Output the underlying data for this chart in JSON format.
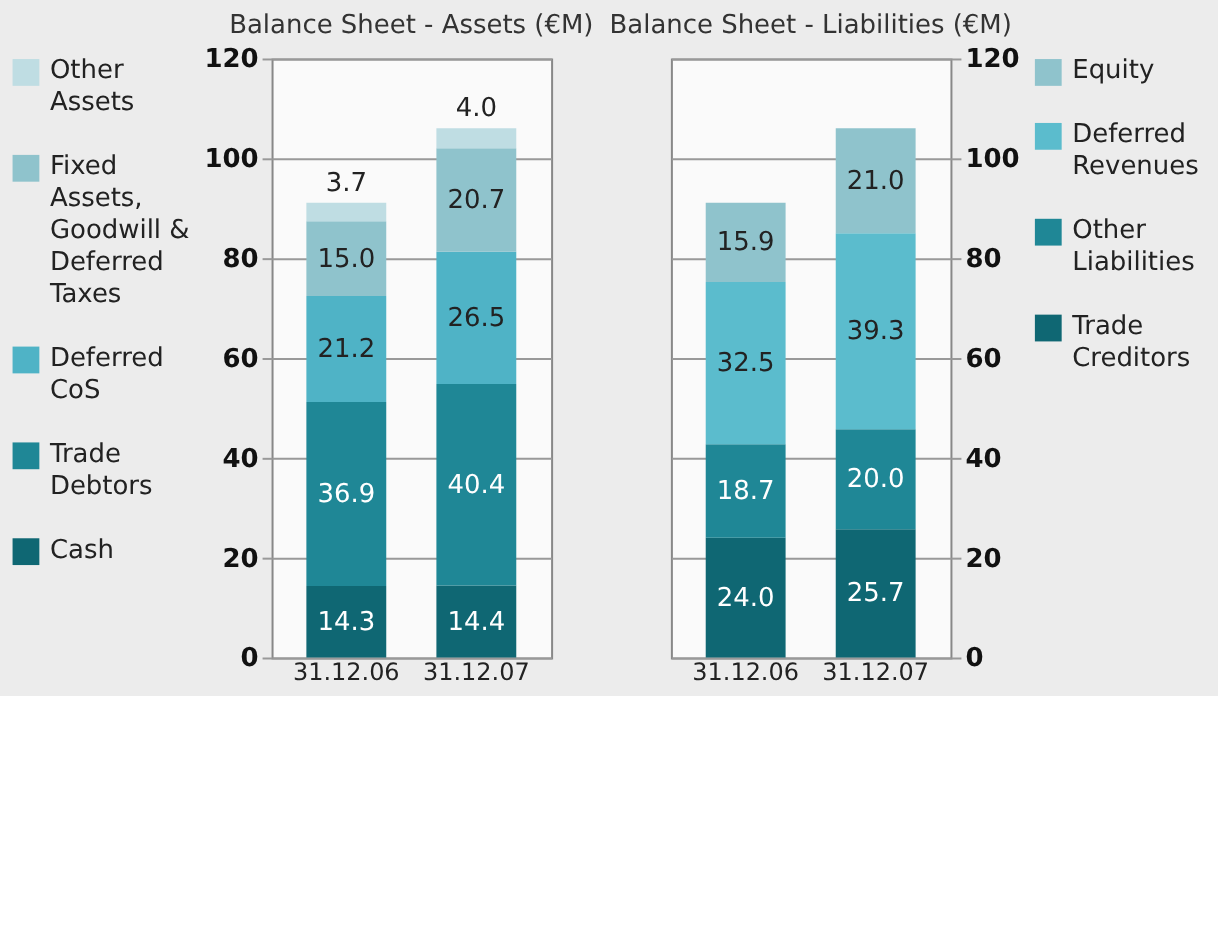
{
  "chart_data": [
    {
      "type": "bar",
      "title": "Balance Sheet - Assets (€M)",
      "categories": [
        "31.12.06",
        "31.12.07"
      ],
      "stacked": true,
      "ylim": [
        0,
        120
      ],
      "yticks": [
        0,
        20,
        40,
        60,
        80,
        100,
        120
      ],
      "grid": "y",
      "legend": "left",
      "series": [
        {
          "name": "Cash",
          "color": "#0f6773",
          "values": [
            14.3,
            14.4
          ],
          "value_labels": [
            "14.3",
            "14.4"
          ]
        },
        {
          "name": "Trade Debtors",
          "color": "#1f8796",
          "values": [
            36.9,
            40.4
          ],
          "value_labels": [
            "36.9",
            "40.4"
          ]
        },
        {
          "name": "Deferred CoS",
          "color": "#4fb3c6",
          "values": [
            21.2,
            26.5
          ],
          "value_labels": [
            "21.2",
            "26.5"
          ]
        },
        {
          "name": "Fixed Assets, Goodwill & Deferred Taxes",
          "color": "#8fc3cc",
          "values": [
            15.0,
            20.7
          ],
          "value_labels": [
            "15.0",
            "20.7"
          ]
        },
        {
          "name": "Other Assets",
          "color": "#bfdde3",
          "values": [
            3.7,
            4.0
          ],
          "value_labels": [
            "3.7",
            "4.0"
          ]
        }
      ]
    },
    {
      "type": "bar",
      "title": "Balance Sheet - Liabilities (€M)",
      "categories": [
        "31.12.06",
        "31.12.07"
      ],
      "stacked": true,
      "ylim": [
        0,
        120
      ],
      "yticks": [
        0,
        20,
        40,
        60,
        80,
        100,
        120
      ],
      "grid": "y",
      "legend": "right",
      "series": [
        {
          "name": "Trade Creditors",
          "color": "#0f6773",
          "values": [
            24.0,
            25.7
          ],
          "value_labels": [
            "24.0",
            "25.7"
          ]
        },
        {
          "name": "Other Liabilities",
          "color": "#1f8796",
          "values": [
            18.7,
            20.0
          ],
          "value_labels": [
            "18.7",
            "20.0"
          ]
        },
        {
          "name": "Deferred Revenues",
          "color": "#5bbccd",
          "values": [
            32.5,
            39.3
          ],
          "value_labels": [
            "32.5",
            "39.3"
          ]
        },
        {
          "name": "Equity",
          "color": "#8fc3cc",
          "values": [
            15.9,
            21.0
          ],
          "value_labels": [
            "15.9",
            "21.0"
          ]
        }
      ]
    }
  ]
}
